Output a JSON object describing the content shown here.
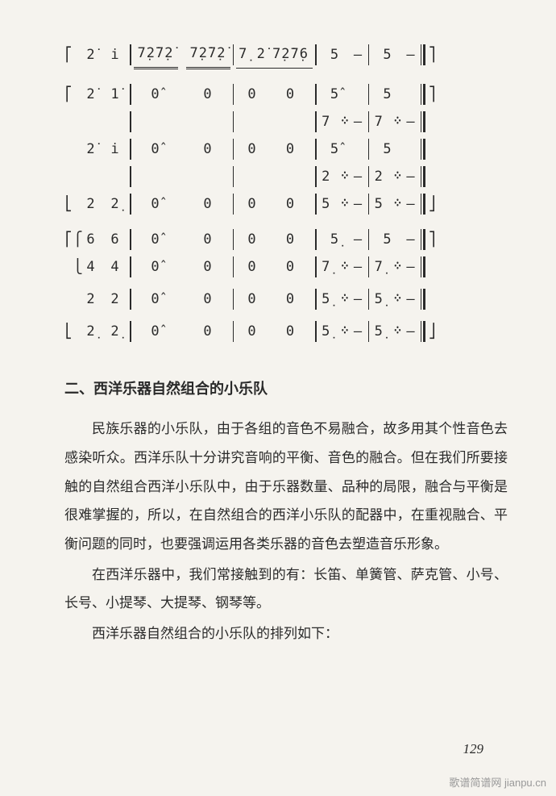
{
  "score": {
    "rows": [
      {
        "pre": "⎡ ",
        "c1": "2̇",
        "c2": "i",
        "m1": "7̣2̇7̣2̇",
        "m1_style": "underline2",
        "m2": "7̣2̇7̣2̇",
        "m2_style": "underline2",
        "m3": "7̣ 2̇",
        "m3_style": "underline1",
        "m4": "7̣2̇7̣6",
        "m4_style": "underline1",
        "r1": "5",
        "r1b": "–",
        "r2": "5",
        "r2b": "–",
        "post": "⎤"
      },
      {
        "spacer": 14
      },
      {
        "pre": "⎡ ",
        "c1": "2̇",
        "c2": "1̇",
        "m1": "0̂",
        "m2": "0",
        "m3": "0",
        "m4": "0",
        "r1": "5̂",
        "r1b": "",
        "r2": "5",
        "r2b": "",
        "post": "⎤"
      },
      {
        "pre": "  ",
        "c1": "",
        "c2": "",
        "m1": "",
        "m2": "",
        "m3": "",
        "m4": "",
        "r1": "7 ᠅",
        "r1b": "–",
        "r2": "7 ᠅",
        "r2b": "–",
        "post": " "
      },
      {
        "pre": "  ",
        "c1": "2̇",
        "c2": "i",
        "m1": "0̂",
        "m2": "0",
        "m3": "0",
        "m4": "0",
        "r1": "5̂",
        "r1b": "",
        "r2": "5",
        "r2b": "",
        "post": " "
      },
      {
        "pre": "  ",
        "c1": "",
        "c2": "",
        "m1": "",
        "m2": "",
        "m3": "",
        "m4": "",
        "r1": "2 ᠅",
        "r1b": "–",
        "r2": "2 ᠅",
        "r2b": "–",
        "post": " "
      },
      {
        "pre": "⎣ ",
        "c1": "2",
        "c2": "2̣",
        "m1": "0̂",
        "m2": "0",
        "m3": "0",
        "m4": "0",
        "r1": "5 ᠅",
        "r1b": "–",
        "r2": "5 ᠅",
        "r2b": "–",
        "post": "⎦"
      },
      {
        "spacer": 10
      },
      {
        "pre": "⎡⎧",
        "c1": "6",
        "c2": "6",
        "m1": "0̂",
        "m2": "0",
        "m3": "0",
        "m4": "0",
        "r1": "5̣",
        "r1b": "–",
        "r2": "5",
        "r2b": "–",
        "post": "⎤"
      },
      {
        "pre": " ⎩",
        "c1": "4",
        "c2": "4",
        "m1": "0̂",
        "m2": "0",
        "m3": "0",
        "m4": "0",
        "r1": "7̣ ᠅",
        "r1b": "–",
        "r2": "7̣ ᠅",
        "r2b": "–",
        "post": " "
      },
      {
        "spacer": 6
      },
      {
        "pre": "  ",
        "c1": "2",
        "c2": "2",
        "m1": "0̂",
        "m2": "0",
        "m3": "0",
        "m4": "0",
        "r1": "5̣ ᠅",
        "r1b": "–",
        "r2": "5̣ ᠅",
        "r2b": "–",
        "post": " "
      },
      {
        "spacer": 6
      },
      {
        "pre": "⎣ ",
        "c1": "2̣",
        "c2": "2̣",
        "m1": "0̂",
        "m2": "0",
        "m3": "0",
        "m4": "0",
        "r1": "5̣ ᠅",
        "r1b": "–",
        "r2": "5̣ ᠅",
        "r2b": "–",
        "post": "⎦"
      }
    ]
  },
  "heading": "二、西洋乐器自然组合的小乐队",
  "paragraphs": [
    "民族乐器的小乐队，由于各组的音色不易融合，故多用其个性音色去感染听众。西洋乐队十分讲究音响的平衡、音色的融合。但在我们所要接触的自然组合西洋小乐队中，由于乐器数量、品种的局限，融合与平衡是很难掌握的，所以，在自然组合的西洋小乐队的配器中，在重视融合、平衡问题的同时，也要强调运用各类乐器的音色去塑造音乐形象。",
    "在西洋乐器中，我们常接触到的有：长笛、单簧管、萨克管、小号、长号、小提琴、大提琴、钢琴等。",
    "西洋乐器自然组合的小乐队的排列如下："
  ],
  "page_number": "129",
  "watermark": "歌谱简谱网 jianpu.cn"
}
